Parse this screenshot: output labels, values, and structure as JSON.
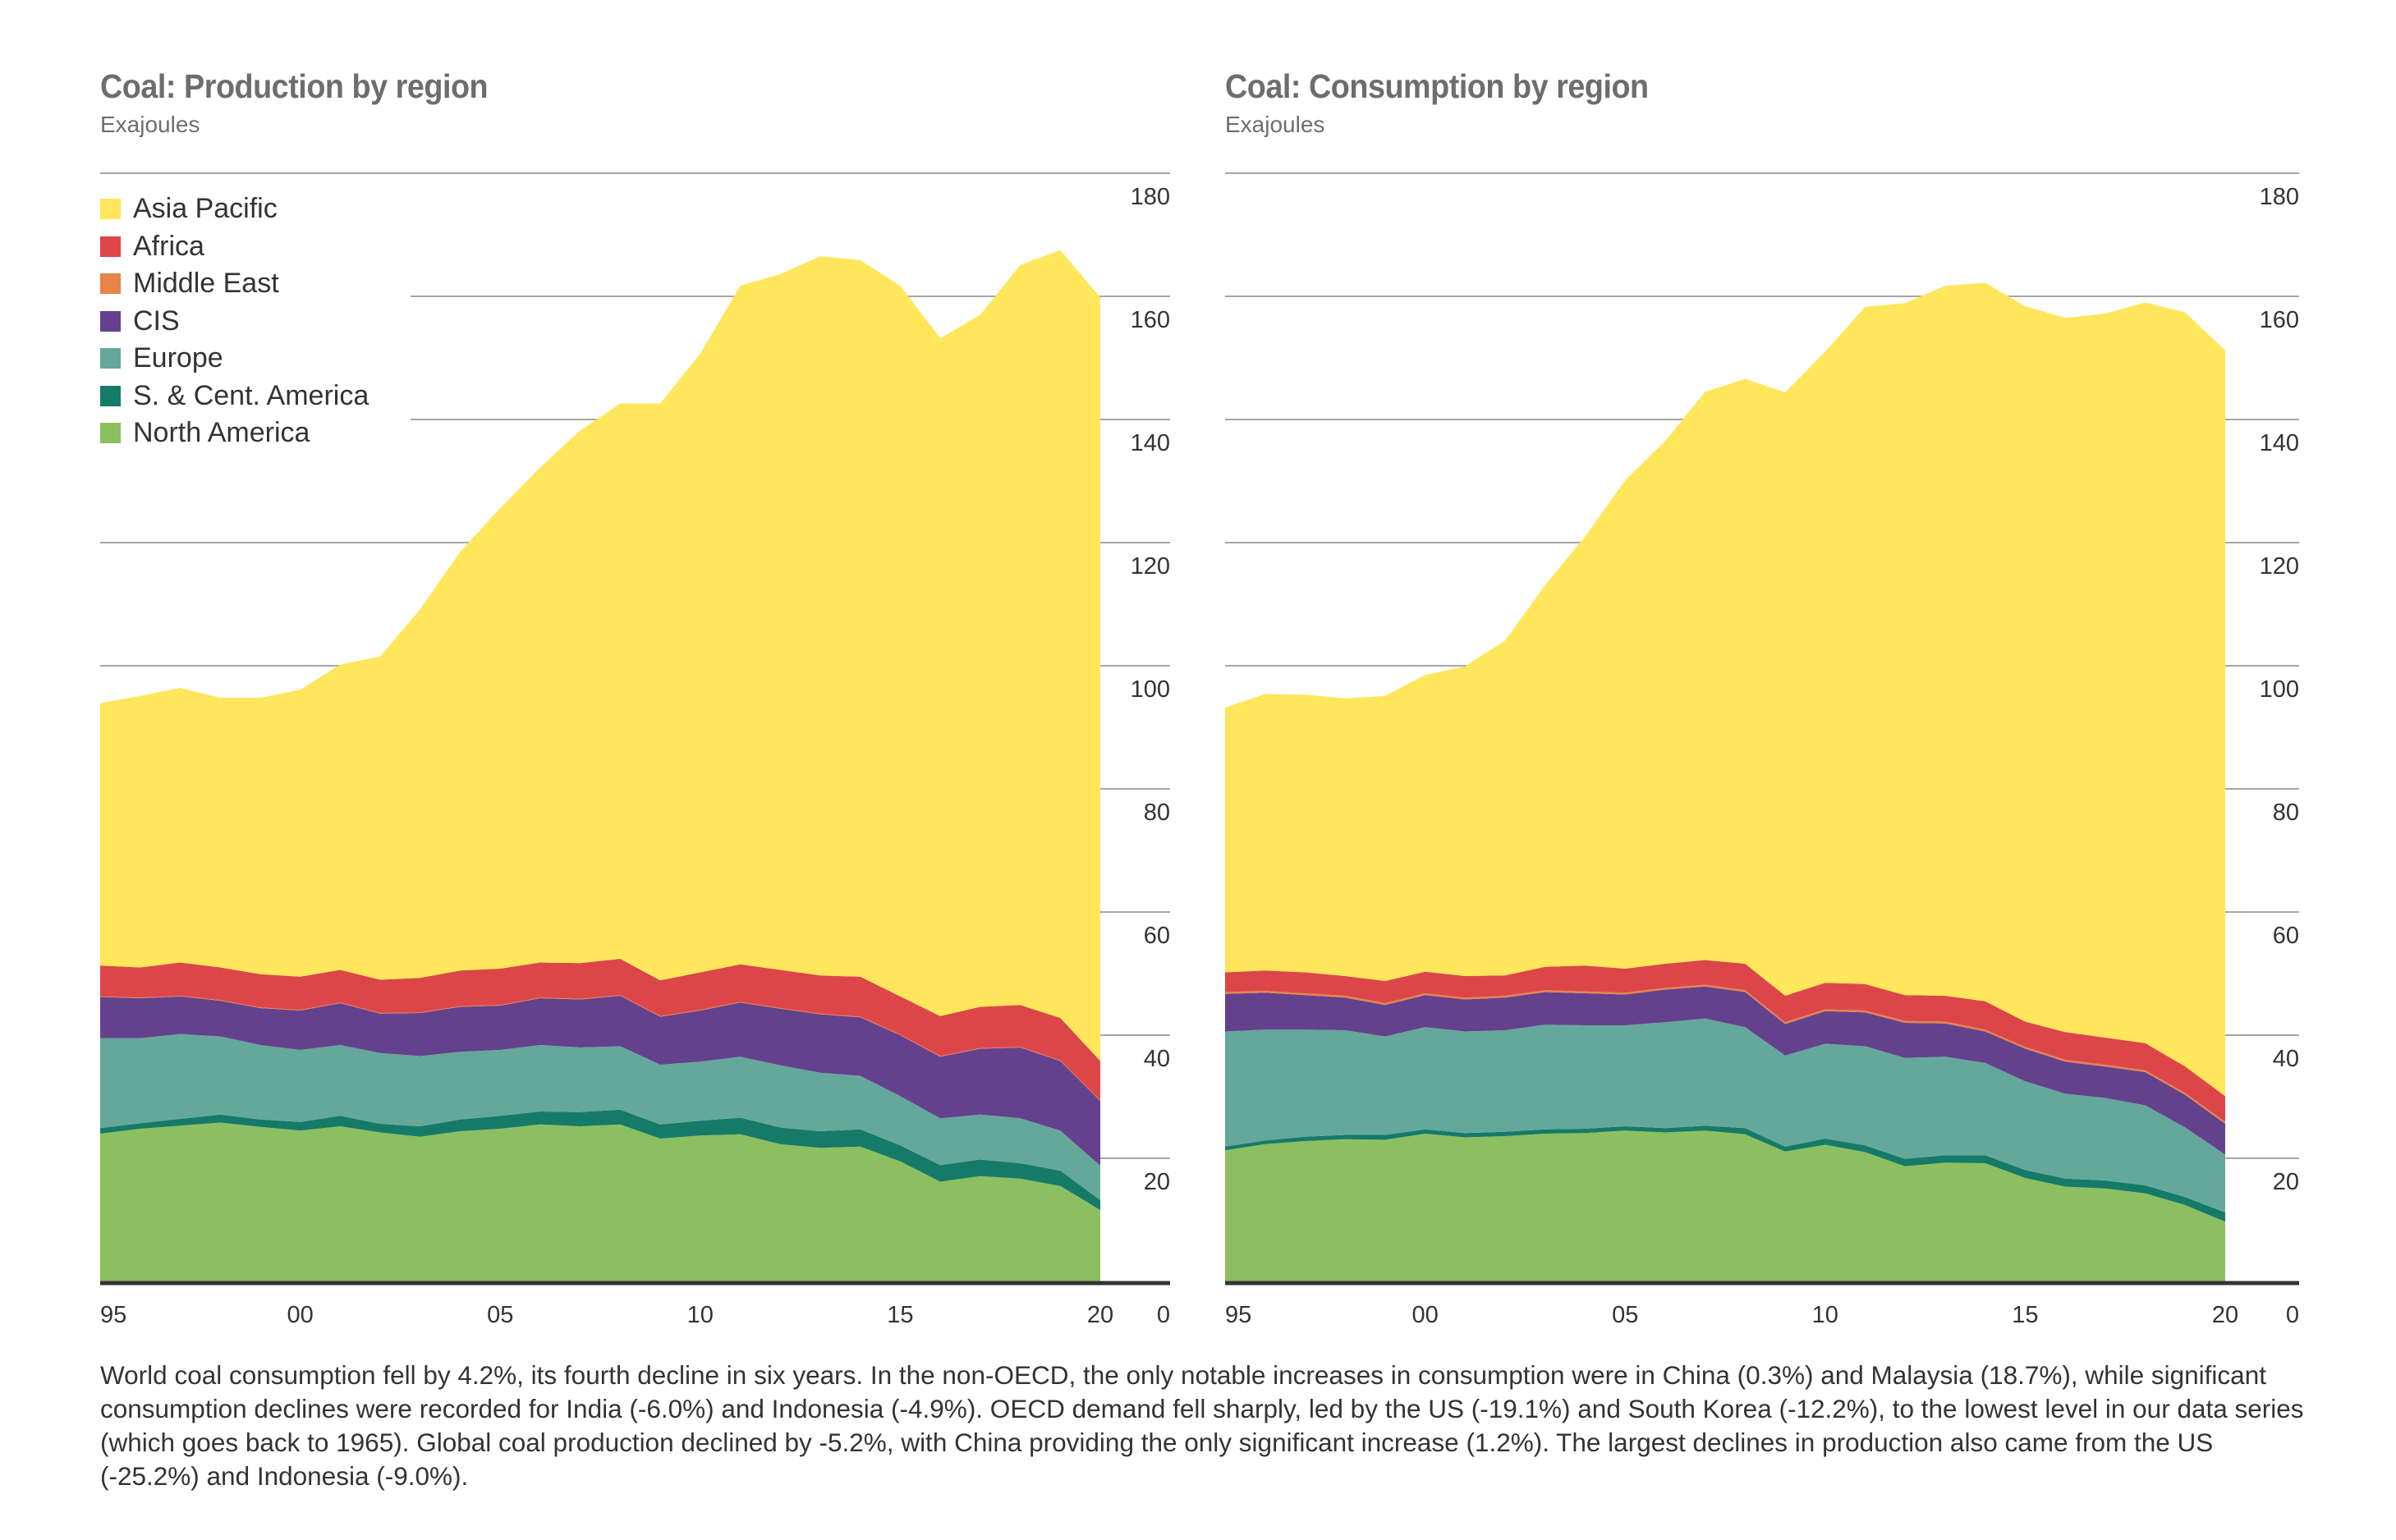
{
  "colors": {
    "asia_pacific": "#FFE65A",
    "africa": "#DC4649",
    "middle_east": "#E6844A",
    "cis": "#64418C",
    "europe": "#64A89C",
    "sc_america": "#167A68",
    "north_america": "#8CBF5F",
    "gridline": "#a6a6a6",
    "axis": "#333333",
    "title": "#6d6d6d",
    "text": "#333333"
  },
  "paragraph": "World coal consumption fell by 4.2%, its fourth decline in six years. In the non-OECD, the only notable increases in consumption were in China (0.3%) and Malaysia (18.7%), while significant consumption declines were recorded for India (-6.0%) and Indonesia (-4.9%). OECD demand fell sharply, led by the US (-19.1%) and South Korea (-12.2%), to the lowest level in our data series (which goes back to 1965). Global coal production declined by -5.2%, with China providing the only significant increase (1.2%). The largest declines in production also came from the US (-25.2%) and Indonesia (-9.0%).",
  "legend": [
    {
      "key": "asia_pacific",
      "label": "Asia Pacific"
    },
    {
      "key": "africa",
      "label": "Africa"
    },
    {
      "key": "middle_east",
      "label": "Middle East"
    },
    {
      "key": "cis",
      "label": "CIS"
    },
    {
      "key": "europe",
      "label": "Europe"
    },
    {
      "key": "sc_america",
      "label": "S. & Cent. America"
    },
    {
      "key": "north_america",
      "label": "North America"
    }
  ],
  "chart_data": [
    {
      "type": "area",
      "stacked": true,
      "title": "Coal: Production by region",
      "subtitle": "Exajoules",
      "xlabel": "",
      "ylabel": "Exajoules",
      "ylim": [
        0,
        180
      ],
      "y_ticks": [
        0,
        20,
        40,
        60,
        80,
        100,
        120,
        140,
        160,
        180
      ],
      "y_tick_labels": [
        "0",
        "20",
        "40",
        "60",
        "80",
        "100",
        "120",
        "140",
        "160",
        "180"
      ],
      "x_tick_labels": [
        "95",
        "00",
        "05",
        "10",
        "15",
        "20"
      ],
      "x_tick_years": [
        1995,
        2000,
        2005,
        2010,
        2015,
        2020
      ],
      "grid": true,
      "legend_position": "top-left",
      "x": [
        1995,
        1996,
        1997,
        1998,
        1999,
        2000,
        2001,
        2002,
        2003,
        2004,
        2005,
        2006,
        2007,
        2008,
        2009,
        2010,
        2011,
        2012,
        2013,
        2014,
        2015,
        2016,
        2017,
        2018,
        2019,
        2020
      ],
      "series": [
        {
          "name": "North America",
          "key": "north_america",
          "values": [
            24.0,
            24.8,
            25.3,
            25.8,
            25.1,
            24.5,
            25.2,
            24.2,
            23.5,
            24.4,
            24.8,
            25.5,
            25.2,
            25.5,
            23.2,
            23.7,
            23.9,
            22.3,
            21.7,
            21.9,
            19.5,
            16.2,
            17.1,
            16.7,
            15.5,
            11.6
          ]
        },
        {
          "name": "S. & Cent. America",
          "key": "sc_america",
          "values": [
            0.9,
            0.9,
            1.1,
            1.3,
            1.2,
            1.4,
            1.7,
            1.4,
            1.7,
            1.9,
            2.1,
            2.1,
            2.3,
            2.4,
            2.3,
            2.4,
            2.7,
            2.7,
            2.7,
            2.8,
            2.6,
            2.7,
            2.7,
            2.5,
            2.5,
            1.6
          ]
        },
        {
          "name": "Europe",
          "key": "europe",
          "values": [
            14.6,
            13.8,
            13.8,
            12.7,
            12.1,
            11.7,
            11.5,
            11.5,
            11.4,
            11.0,
            10.7,
            10.8,
            10.5,
            10.3,
            9.7,
            9.6,
            9.9,
            10.1,
            9.5,
            8.7,
            8.0,
            7.6,
            7.3,
            7.3,
            6.5,
            5.6
          ]
        },
        {
          "name": "CIS",
          "key": "cis",
          "values": [
            6.7,
            6.5,
            6.1,
            5.8,
            6.0,
            6.4,
            6.8,
            6.4,
            7.0,
            7.3,
            7.2,
            7.6,
            7.8,
            8.2,
            7.8,
            8.3,
            8.8,
            9.2,
            9.5,
            9.5,
            9.9,
            10.0,
            10.7,
            11.5,
            11.3,
            10.5
          ]
        },
        {
          "name": "Middle East",
          "key": "middle_east",
          "values": [
            0.1,
            0.1,
            0.1,
            0.1,
            0.1,
            0.1,
            0.1,
            0.1,
            0.1,
            0.1,
            0.1,
            0.1,
            0.1,
            0.1,
            0.1,
            0.1,
            0.1,
            0.1,
            0.1,
            0.1,
            0.1,
            0.1,
            0.1,
            0.1,
            0.1,
            0.1
          ]
        },
        {
          "name": "Africa",
          "key": "africa",
          "values": [
            5.0,
            4.9,
            5.4,
            5.3,
            5.4,
            5.4,
            5.3,
            5.4,
            5.6,
            5.8,
            5.9,
            5.7,
            5.8,
            5.9,
            5.8,
            6.1,
            6.1,
            6.2,
            6.2,
            6.5,
            6.2,
            6.5,
            6.7,
            6.8,
            6.9,
            6.4
          ]
        },
        {
          "name": "Asia Pacific",
          "key": "asia_pacific",
          "values": [
            42.6,
            44.1,
            44.6,
            43.8,
            44.9,
            46.6,
            49.6,
            52.5,
            59.9,
            68.0,
            74.8,
            80.4,
            86.5,
            90.2,
            93.7,
            100.5,
            110.2,
            113.0,
            116.8,
            116.4,
            115.4,
            110.1,
            112.4,
            120.2,
            124.7,
            124.0
          ]
        }
      ],
      "totals": [
        93.9,
        95.1,
        96.4,
        94.8,
        94.8,
        96.1,
        100.2,
        101.5,
        109.2,
        118.5,
        125.6,
        132.2,
        138.2,
        142.6,
        142.6,
        150.7,
        161.7,
        163.6,
        166.5,
        165.9,
        161.7,
        153.2,
        157.0,
        165.1,
        167.5,
        159.6
      ]
    },
    {
      "type": "area",
      "stacked": true,
      "title": "Coal: Consumption by region",
      "subtitle": "Exajoules",
      "xlabel": "",
      "ylabel": "Exajoules",
      "ylim": [
        0,
        180
      ],
      "y_ticks": [
        0,
        20,
        40,
        60,
        80,
        100,
        120,
        140,
        160,
        180
      ],
      "y_tick_labels": [
        "0",
        "20",
        "40",
        "60",
        "80",
        "100",
        "120",
        "140",
        "160",
        "180"
      ],
      "x_tick_labels": [
        "95",
        "00",
        "05",
        "10",
        "15",
        "20"
      ],
      "x_tick_years": [
        1995,
        2000,
        2005,
        2010,
        2015,
        2020
      ],
      "grid": true,
      "legend_position": "none",
      "x": [
        1995,
        1996,
        1997,
        1998,
        1999,
        2000,
        2001,
        2002,
        2003,
        2004,
        2005,
        2006,
        2007,
        2008,
        2009,
        2010,
        2011,
        2012,
        2013,
        2014,
        2015,
        2016,
        2017,
        2018,
        2019,
        2020
      ],
      "series": [
        {
          "name": "North America",
          "key": "north_america",
          "values": [
            21.3,
            22.3,
            22.8,
            23.1,
            23.0,
            24.0,
            23.4,
            23.6,
            24.0,
            24.1,
            24.5,
            24.2,
            24.5,
            23.9,
            21.1,
            22.2,
            21.0,
            18.7,
            19.3,
            19.2,
            16.8,
            15.4,
            15.1,
            14.3,
            12.4,
            9.7
          ]
        },
        {
          "name": "S. & Cent. America",
          "key": "sc_america",
          "values": [
            0.6,
            0.6,
            0.7,
            0.7,
            0.8,
            0.7,
            0.7,
            0.7,
            0.7,
            0.7,
            0.7,
            0.7,
            0.8,
            1.0,
            0.8,
            1.0,
            1.1,
            1.2,
            1.2,
            1.3,
            1.3,
            1.3,
            1.3,
            1.3,
            1.3,
            1.5
          ]
        },
        {
          "name": "Europe",
          "key": "europe",
          "values": [
            18.7,
            18.0,
            17.4,
            17.0,
            16.0,
            16.6,
            16.5,
            16.5,
            17.0,
            16.8,
            16.4,
            17.2,
            17.4,
            16.4,
            14.8,
            15.4,
            16.1,
            16.4,
            16.0,
            15.0,
            14.4,
            13.8,
            13.4,
            13.0,
            11.3,
            9.4
          ]
        },
        {
          "name": "CIS",
          "key": "cis",
          "values": [
            6.1,
            6.0,
            5.6,
            5.3,
            5.1,
            5.2,
            5.2,
            5.3,
            5.3,
            5.2,
            5.0,
            5.3,
            5.2,
            5.7,
            5.1,
            5.3,
            5.5,
            5.7,
            5.4,
            5.1,
            5.3,
            5.2,
            5.1,
            5.4,
            5.3,
            5.0
          ]
        },
        {
          "name": "Middle East",
          "key": "middle_east",
          "values": [
            0.3,
            0.3,
            0.3,
            0.3,
            0.3,
            0.3,
            0.3,
            0.3,
            0.3,
            0.3,
            0.3,
            0.3,
            0.3,
            0.3,
            0.3,
            0.3,
            0.3,
            0.3,
            0.3,
            0.3,
            0.3,
            0.3,
            0.3,
            0.3,
            0.3,
            0.3
          ]
        },
        {
          "name": "Africa",
          "key": "africa",
          "values": [
            3.2,
            3.3,
            3.4,
            3.2,
            3.6,
            3.5,
            3.5,
            3.3,
            3.8,
            4.2,
            3.9,
            3.9,
            4.0,
            4.3,
            4.3,
            4.3,
            4.3,
            4.2,
            4.2,
            4.6,
            4.1,
            4.5,
            4.4,
            4.4,
            4.3,
            4.2
          ]
        },
        {
          "name": "Asia Pacific",
          "key": "asia_pacific",
          "values": [
            43.0,
            44.9,
            45.1,
            45.1,
            46.3,
            48.2,
            50.3,
            54.4,
            62.0,
            69.7,
            79.3,
            84.9,
            92.3,
            95.0,
            98.0,
            102.5,
            110.0,
            112.4,
            115.3,
            116.7,
            116.2,
            116.0,
            117.6,
            120.3,
            122.5,
            121.1
          ]
        }
      ],
      "totals": [
        93.3,
        95.5,
        95.4,
        94.8,
        95.2,
        98.6,
        100.0,
        104.2,
        113.2,
        121.1,
        130.2,
        136.6,
        144.6,
        146.7,
        144.5,
        151.1,
        158.4,
        159.0,
        161.8,
        162.3,
        158.5,
        156.6,
        157.3,
        159.1,
        157.5,
        151.3
      ]
    }
  ]
}
